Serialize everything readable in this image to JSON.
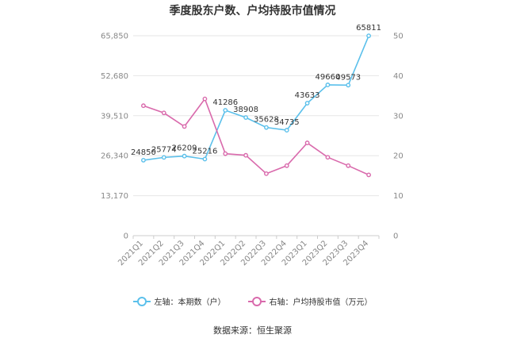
{
  "chart_data": {
    "type": "line",
    "title": "季度股东户数、户均持股市值情况",
    "categories": [
      "2021Q1",
      "2021Q2",
      "2021Q3",
      "2021Q4",
      "2022Q1",
      "2022Q2",
      "2022Q3",
      "2022Q4",
      "2023Q1",
      "2023Q2",
      "2023Q3",
      "2023Q4"
    ],
    "left_axis": {
      "ticks": [
        "0",
        "13,170",
        "26,340",
        "39,510",
        "52,680",
        "65,850"
      ],
      "ylim": [
        0,
        65850
      ]
    },
    "right_axis": {
      "ticks": [
        "0",
        "10",
        "20",
        "30",
        "40",
        "50"
      ],
      "ylim": [
        0,
        50
      ]
    },
    "series": [
      {
        "name": "左轴：本期数（户）",
        "axis": "left",
        "color": "#5bc0eb",
        "values": [
          24850,
          25774,
          26209,
          25216,
          41286,
          38908,
          35628,
          34735,
          43633,
          49660,
          49573,
          65811
        ],
        "labels": [
          "24850",
          "25774",
          "26209",
          "25216",
          "41286",
          "38908",
          "35628",
          "34735",
          "43633",
          "49660",
          "49573",
          "65811"
        ]
      },
      {
        "name": "右轴：户均持股市值（万元）",
        "axis": "right",
        "color": "#d96aac",
        "values": [
          32.5,
          30.7,
          27.3,
          34.2,
          20.5,
          20.1,
          15.5,
          17.5,
          23.2,
          19.6,
          17.5,
          15.2
        ]
      }
    ],
    "grid": true,
    "legend": "bottom"
  },
  "source": "数据来源：恒生聚源"
}
